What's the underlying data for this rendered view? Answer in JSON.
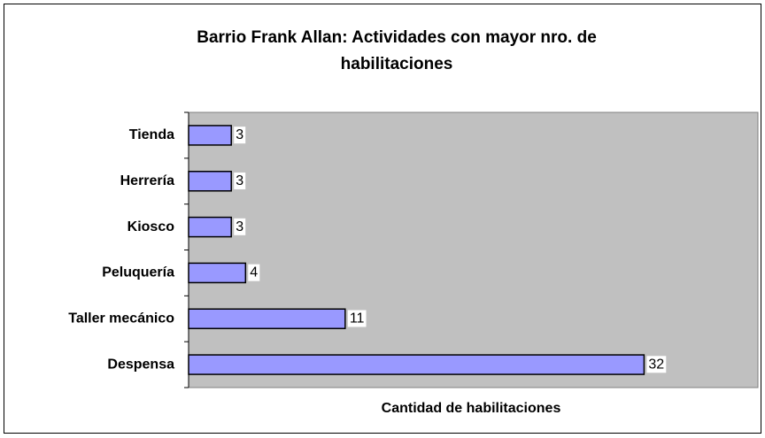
{
  "chart_data": {
    "type": "hbar",
    "title": "Barrio Frank Allan: Actividades con mayor nro. de habilitaciones",
    "xlabel": "Cantidad de habilitaciones",
    "categories": [
      "Tienda",
      "Herrería",
      "Kiosco",
      "Peluquería",
      "Taller mecánico",
      "Despensa"
    ],
    "values": [
      3,
      3,
      3,
      4,
      11,
      32
    ],
    "color": "#9999ff",
    "plot_background": "#c0c0c0",
    "xlim": [
      0,
      40
    ]
  }
}
